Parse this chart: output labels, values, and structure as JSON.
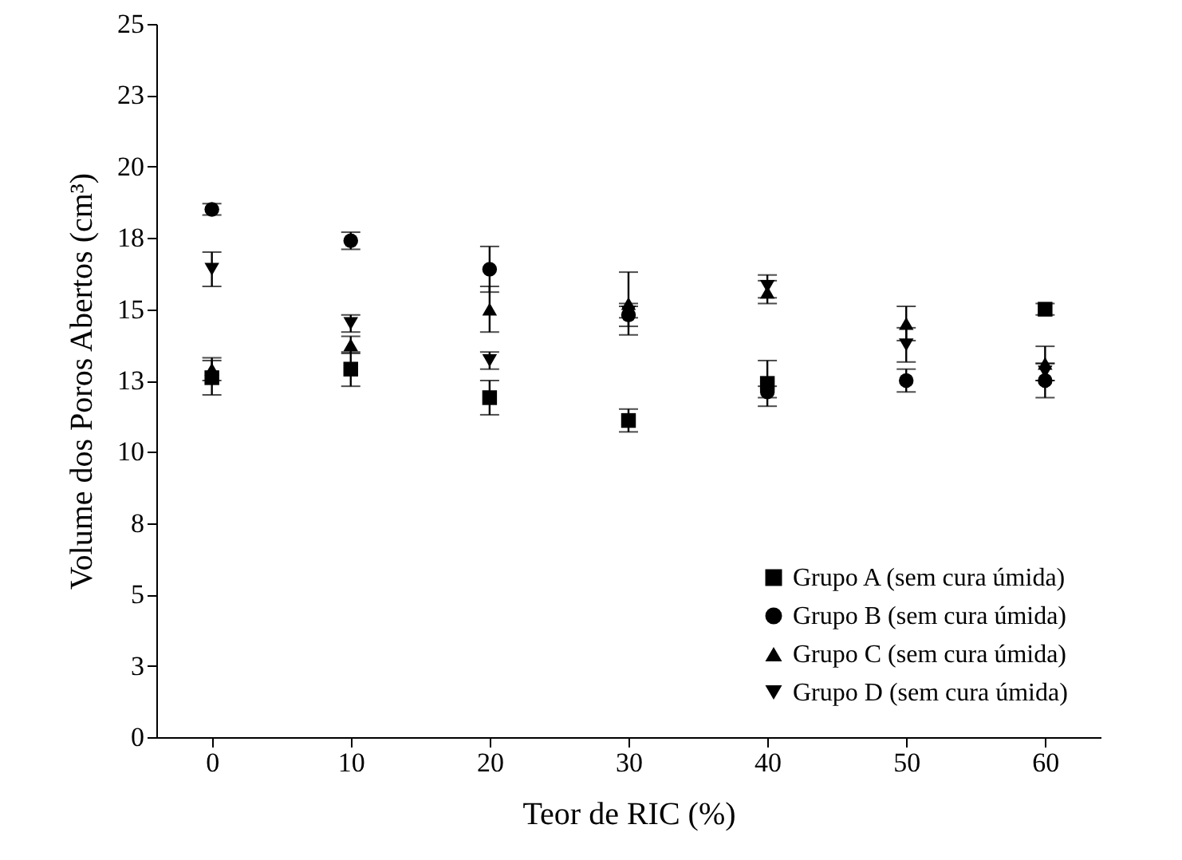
{
  "chart_data": {
    "type": "scatter",
    "xlabel": "Teor de RIC (%)",
    "ylabel": "Volume dos Poros Abertos (cm³)",
    "x": [
      0,
      10,
      20,
      30,
      40,
      50,
      60
    ],
    "xlim": [
      -4,
      64
    ],
    "xticks": [
      0,
      10,
      20,
      30,
      40,
      50,
      60
    ],
    "ylim": [
      0,
      25
    ],
    "yticks": [
      0,
      {
        "value": 2.5,
        "label": "3"
      },
      5,
      {
        "value": 7.5,
        "label": "8"
      },
      10,
      {
        "value": 12.5,
        "label": "13"
      },
      15,
      {
        "value": 17.5,
        "label": "18"
      },
      20,
      {
        "value": 22.5,
        "label": "23"
      },
      25
    ],
    "grid": false,
    "legend": "bottom right",
    "series": [
      {
        "name": "Grupo A (sem cura úmida)",
        "color": "#000000",
        "marker": "square",
        "values": [
          12.6,
          12.9,
          11.9,
          11.1,
          12.4,
          null,
          15.0
        ],
        "errors": [
          0.6,
          0.6,
          0.6,
          0.4,
          0.8,
          null,
          0.2
        ]
      },
      {
        "name": "Grupo B (sem cura úmida)",
        "color": "#000000",
        "marker": "circle",
        "values": [
          18.5,
          17.4,
          16.4,
          14.8,
          12.1,
          12.5,
          12.5
        ],
        "errors": [
          0.2,
          0.3,
          0.8,
          0.4,
          0.2,
          0.4,
          0.6
        ]
      },
      {
        "name": "Grupo C (sem cura úmida)",
        "color": "#000000",
        "marker": "triangle",
        "values": [
          12.9,
          13.75,
          15.0,
          15.2,
          15.6,
          14.5,
          13.1
        ],
        "errors": [
          0.4,
          0.3,
          0.8,
          1.1,
          0.4,
          0.6,
          0.6
        ]
      },
      {
        "name": "Grupo D (sem cura úmida)",
        "color": "#000000",
        "marker": "triangle-down",
        "values": [
          16.4,
          14.5,
          13.2,
          14.9,
          15.8,
          13.75,
          12.8
        ],
        "errors": [
          0.6,
          0.3,
          0.3,
          0.2,
          0.4,
          0.6,
          0.3
        ]
      }
    ]
  }
}
